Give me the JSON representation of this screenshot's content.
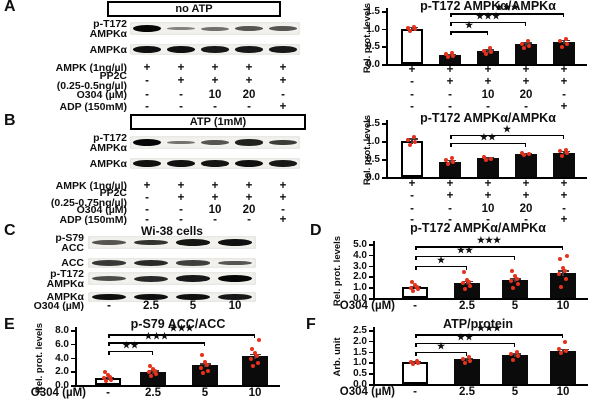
{
  "panels": {
    "A": {
      "letter": "A",
      "box_title": "no ATP",
      "blot": {
        "rows": [
          {
            "label": "p-T172\nAMPKα",
            "bands": [
              1.0,
              0.3,
              0.4,
              0.55,
              0.55
            ]
          },
          {
            "label": "AMPKα",
            "bands": [
              0.95,
              0.95,
              0.9,
              0.9,
              0.9
            ]
          }
        ]
      },
      "treatments": [
        {
          "label": "AMPK (1ng/µl)",
          "values": [
            "+",
            "+",
            "+",
            "+",
            "+"
          ]
        },
        {
          "label": "PP2C\n(0.25-0.5ng/µl)",
          "values": [
            "-",
            "+",
            "+",
            "+",
            "+"
          ]
        },
        {
          "label": "O304 (µM)",
          "values": [
            "-",
            "-",
            "10",
            "20",
            "-"
          ]
        },
        {
          "label": "ADP (150mM)",
          "values": [
            "-",
            "-",
            "-",
            "-",
            "+"
          ]
        }
      ]
    },
    "B": {
      "letter": "B",
      "box_title": "ATP (1mM)",
      "blot": {
        "rows": [
          {
            "label": "p-T172\nAMPKα",
            "bands": [
              1.0,
              0.38,
              0.55,
              0.85,
              0.7
            ]
          },
          {
            "label": "AMPKα",
            "bands": [
              0.95,
              0.95,
              0.92,
              0.95,
              0.9
            ]
          }
        ]
      },
      "treatments": [
        {
          "label": "AMPK (1ng/µl)",
          "values": [
            "+",
            "+",
            "+",
            "+",
            "+"
          ]
        },
        {
          "label": "PP2C\n(0.25-0.75ng/µl)",
          "values": [
            "-",
            "+",
            "+",
            "+",
            "+"
          ]
        },
        {
          "label": "O304 (µM)",
          "values": [
            "-",
            "-",
            "10",
            "20",
            "-"
          ]
        },
        {
          "label": "ADP (150mM)",
          "values": [
            "-",
            "-",
            "-",
            "-",
            "+"
          ]
        }
      ]
    },
    "C": {
      "letter": "C",
      "title": "Wi-38 cells",
      "blot": {
        "rows": [
          {
            "label": "p-S79\nACC",
            "bands": [
              0.55,
              0.75,
              0.92,
              0.95
            ]
          },
          {
            "label": "ACC",
            "bands": [
              0.72,
              0.8,
              0.68,
              0.55
            ]
          },
          {
            "label": "p-T172\nAMPKα",
            "bands": [
              0.6,
              0.8,
              0.9,
              1.0
            ]
          },
          {
            "label": "AMPKα",
            "bands": [
              0.95,
              0.95,
              0.95,
              0.9
            ]
          }
        ]
      },
      "treatments": [
        {
          "label": "O304 (µM)",
          "values": [
            "-",
            "2.5",
            "5",
            "10"
          ]
        }
      ]
    },
    "D": {
      "letter": "D"
    },
    "E": {
      "letter": "E"
    },
    "F": {
      "letter": "F"
    }
  },
  "chart_data": [
    {
      "id": "A",
      "type": "bar",
      "title": "p-T172 AMPKα/AMPKα",
      "ylabel": "Rel. prot. levels",
      "ylim": [
        0,
        1.5
      ],
      "yticks": [
        0,
        0.5,
        1.0,
        1.5
      ],
      "ytick_labels": [
        "0.0",
        "0.5",
        "1.0",
        "1.5"
      ],
      "values": [
        1.0,
        0.25,
        0.37,
        0.57,
        0.62
      ],
      "errors": [
        0.05,
        0.03,
        0.05,
        0.05,
        0.06
      ],
      "bar_colors": [
        "white",
        "black",
        "black",
        "black",
        "black"
      ],
      "points": [
        [
          0.93,
          0.98,
          1.02,
          1.06
        ],
        [
          0.2,
          0.24,
          0.27,
          0.31
        ],
        [
          0.28,
          0.33,
          0.38,
          0.44
        ],
        [
          0.45,
          0.52,
          0.58,
          0.65
        ],
        [
          0.48,
          0.58,
          0.65,
          0.72
        ]
      ],
      "sig": [
        {
          "from": 1,
          "to": 2,
          "stars": "*",
          "y": 0.93
        },
        {
          "from": 1,
          "to": 3,
          "stars": "***",
          "y": 1.2
        },
        {
          "from": 1,
          "to": 4,
          "stars": "***",
          "y": 1.44
        }
      ],
      "xrows": [
        {
          "label": "",
          "values": [
            "+",
            "+",
            "+",
            "+",
            "+"
          ]
        },
        {
          "label": "",
          "values": [
            "-",
            "+",
            "+",
            "+",
            "+"
          ]
        },
        {
          "label": "",
          "values": [
            "-",
            "-",
            "10",
            "20",
            "-"
          ]
        },
        {
          "label": "",
          "values": [
            "-",
            "-",
            "-",
            "-",
            "+"
          ]
        }
      ]
    },
    {
      "id": "B",
      "type": "bar",
      "title": "p-T172 AMPKα/AMPKα",
      "ylabel": "Rel. prot. levels",
      "ylim": [
        0,
        1.5
      ],
      "yticks": [
        0,
        0.5,
        1.0,
        1.5
      ],
      "ytick_labels": [
        "0.0",
        "0.5",
        "1.0",
        "1.5"
      ],
      "values": [
        1.0,
        0.43,
        0.52,
        0.65,
        0.68
      ],
      "errors": [
        0.07,
        0.05,
        0.04,
        0.03,
        0.05
      ],
      "bar_colors": [
        "white",
        "black",
        "black",
        "black",
        "black"
      ],
      "points": [
        [
          0.88,
          0.97,
          1.03,
          1.1
        ],
        [
          0.36,
          0.42,
          0.47,
          0.52
        ],
        [
          0.46,
          0.51,
          0.56
        ],
        [
          0.6,
          0.64,
          0.68
        ],
        [
          0.58,
          0.66,
          0.72,
          0.76
        ]
      ],
      "sig": [
        {
          "from": 1,
          "to": 3,
          "stars": "**",
          "y": 0.95
        },
        {
          "from": 1,
          "to": 4,
          "stars": "*",
          "y": 1.18
        }
      ],
      "xrows": [
        {
          "label": "",
          "values": [
            "+",
            "+",
            "+",
            "+",
            "+"
          ]
        },
        {
          "label": "",
          "values": [
            "-",
            "+",
            "+",
            "+",
            "+"
          ]
        },
        {
          "label": "",
          "values": [
            "-",
            "-",
            "10",
            "20",
            "-"
          ]
        },
        {
          "label": "",
          "values": [
            "-",
            "-",
            "-",
            "-",
            "+"
          ]
        }
      ]
    },
    {
      "id": "D",
      "type": "bar",
      "title": "p-T172 AMPKα/AMPKα",
      "ylabel": "Rel. prot. levels",
      "ylim": [
        0,
        5
      ],
      "yticks": [
        0,
        1,
        2,
        3,
        4,
        5
      ],
      "ytick_labels": [
        "0.0",
        "1.0",
        "2.0",
        "3.0",
        "4.0",
        "5.0"
      ],
      "values": [
        1.0,
        1.4,
        1.65,
        2.3
      ],
      "errors": [
        0.15,
        0.2,
        0.2,
        0.25
      ],
      "bar_colors": [
        "white",
        "black",
        "black",
        "black"
      ],
      "points": [
        [
          0.65,
          0.85,
          0.95,
          1.05,
          1.2,
          1.45
        ],
        [
          0.85,
          1.15,
          1.35,
          1.5,
          1.7,
          2.4
        ],
        [
          0.95,
          1.3,
          1.6,
          1.8,
          2.05,
          2.5
        ],
        [
          1.0,
          1.8,
          2.2,
          2.5,
          2.8,
          3.6,
          3.85
        ]
      ],
      "sig": [
        {
          "from": 0,
          "to": 1,
          "stars": "*",
          "y": 3.0
        },
        {
          "from": 0,
          "to": 2,
          "stars": "**",
          "y": 3.9
        },
        {
          "from": 0,
          "to": 3,
          "stars": "***",
          "y": 4.8
        }
      ],
      "xrows": [
        {
          "label": "O304 (µM)",
          "values": [
            "-",
            "2.5",
            "5",
            "10"
          ]
        }
      ]
    },
    {
      "id": "E",
      "type": "bar",
      "title": "p-S79 ACC/ACC",
      "ylabel": "Rel. prot. levels",
      "ylim": [
        0,
        8
      ],
      "yticks": [
        0,
        2,
        4,
        6,
        8
      ],
      "ytick_labels": [
        "0.0",
        "2.0",
        "4.0",
        "6.0",
        "8.0"
      ],
      "values": [
        1.0,
        1.9,
        2.9,
        4.2
      ],
      "errors": [
        0.2,
        0.25,
        0.3,
        0.35
      ],
      "bar_colors": [
        "white",
        "black",
        "black",
        "black"
      ],
      "points": [
        [
          0.55,
          0.8,
          1.0,
          1.2,
          1.5,
          1.95
        ],
        [
          1.3,
          1.6,
          1.85,
          2.05,
          2.3,
          2.8
        ],
        [
          1.7,
          2.1,
          2.5,
          2.9,
          3.3,
          4.3
        ],
        [
          2.7,
          3.2,
          3.8,
          4.2,
          4.7,
          5.3,
          6.6
        ]
      ],
      "sig": [
        {
          "from": 0,
          "to": 1,
          "stars": "**",
          "y": 5.0
        },
        {
          "from": 0,
          "to": 2,
          "stars": "***",
          "y": 6.2
        },
        {
          "from": 0,
          "to": 3,
          "stars": "***",
          "y": 7.4
        }
      ],
      "xrows": [
        {
          "label": "O304 (µM)",
          "values": [
            "-",
            "2.5",
            "5",
            "10"
          ]
        }
      ]
    },
    {
      "id": "F",
      "type": "bar",
      "title": "ATP/protein",
      "ylabel": "Arb. unit",
      "ylim": [
        0,
        2.5
      ],
      "yticks": [
        0,
        0.5,
        1.0,
        1.5,
        2.0,
        2.5
      ],
      "ytick_labels": [
        "0.0",
        "0.5",
        "1.0",
        "1.5",
        "2.0",
        "2.5"
      ],
      "values": [
        1.0,
        1.15,
        1.35,
        1.55
      ],
      "errors": [
        0.05,
        0.07,
        0.08,
        0.08
      ],
      "bar_colors": [
        "white",
        "black",
        "black",
        "black"
      ],
      "points": [
        [
          0.92,
          0.97,
          1.02,
          1.08
        ],
        [
          0.98,
          1.08,
          1.16,
          1.25
        ],
        [
          1.12,
          1.28,
          1.4,
          1.5
        ],
        [
          1.42,
          1.52,
          1.62,
          1.95
        ]
      ],
      "sig": [
        {
          "from": 0,
          "to": 1,
          "stars": "*",
          "y": 1.5
        },
        {
          "from": 0,
          "to": 2,
          "stars": "**",
          "y": 1.9
        },
        {
          "from": 0,
          "to": 3,
          "stars": "***",
          "y": 2.3
        }
      ],
      "xrows": [
        {
          "label": "O304 (µM)",
          "values": [
            "-",
            "2.5",
            "5",
            "10"
          ]
        }
      ]
    }
  ],
  "colors": {
    "accent_red": "#e6311c",
    "bar_black": "#0b0b0b",
    "strip_gray": "#f2f1ee"
  }
}
